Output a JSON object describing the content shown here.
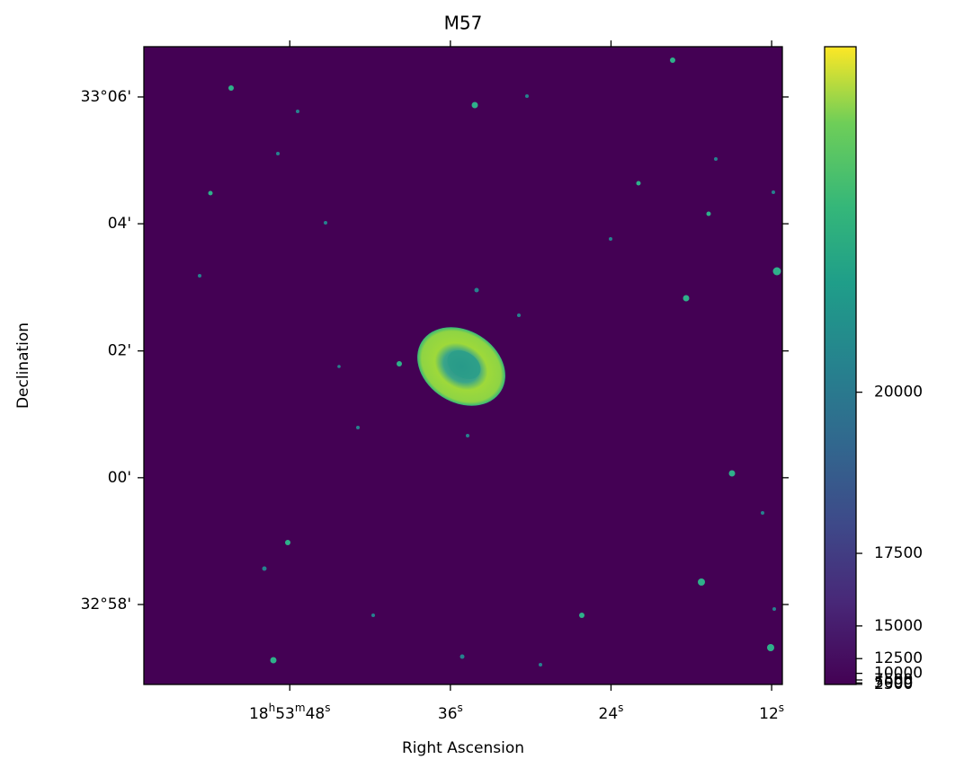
{
  "chart_data": {
    "type": "image",
    "title": "M57",
    "xlabel": "Right Ascension",
    "ylabel": "Declination",
    "xlim": [
      58.9,
      11.2
    ],
    "xticks": [
      {
        "value": 48,
        "label": "18h53m48s"
      },
      {
        "value": 36,
        "label": "36s"
      },
      {
        "value": 24,
        "label": "24s"
      },
      {
        "value": 12,
        "label": "12s"
      }
    ],
    "ylim": [
      32.9457,
      33.1132
    ],
    "yticks": [
      {
        "value": 33.1,
        "label": "33°06'"
      },
      {
        "value": 33.0667,
        "label": "04'"
      },
      {
        "value": 33.0333,
        "label": "02'"
      },
      {
        "value": 33,
        "label": "00'"
      },
      {
        "value": 32.9667,
        "label": "32°58'"
      }
    ],
    "colorbar": {
      "clim": [
        2000,
        22440
      ],
      "stretch": "powerdist",
      "stretch_a": 680,
      "ticks": [
        2500,
        5000,
        7500,
        10000,
        12500,
        15000,
        17500,
        20000
      ]
    }
  }
}
